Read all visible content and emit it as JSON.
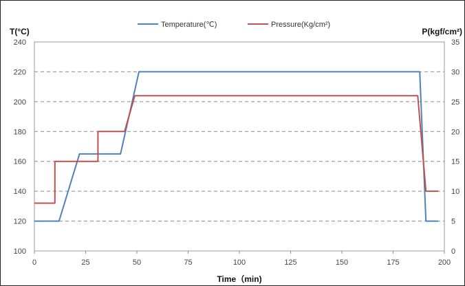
{
  "chart_data": {
    "type": "line",
    "title": "",
    "xlabel": "Time（min)",
    "ylabel_left": "T(°C)",
    "ylabel_right": "P(kgf/cm²)",
    "xlim": [
      0,
      200
    ],
    "ylim_left": [
      100,
      240
    ],
    "ylim_right": [
      0,
      35
    ],
    "x_ticks": [
      "0",
      "25",
      "50",
      "75",
      "100",
      "125",
      "150",
      "175",
      "200"
    ],
    "y_ticks_left": [
      "100",
      "120",
      "140",
      "160",
      "180",
      "200",
      "220",
      "240"
    ],
    "y_ticks_right": [
      "0",
      "5",
      "10",
      "15",
      "20",
      "25",
      "30",
      "35"
    ],
    "grid": true,
    "legend_position": "top",
    "series": [
      {
        "name": "Temperature(℃)",
        "axis": "left",
        "color": "#4f81bd",
        "x": [
          0,
          12,
          22,
          42,
          51,
          188,
          191,
          197
        ],
        "y": [
          120,
          120,
          165,
          165,
          220,
          220,
          120,
          120
        ]
      },
      {
        "name": "Pressure(Kg/cm²)",
        "axis": "right",
        "color": "#c0504d",
        "x": [
          0,
          10,
          10,
          31,
          31,
          44,
          49,
          187,
          191,
          197
        ],
        "y": [
          8,
          8,
          15,
          15,
          20,
          20,
          26,
          26,
          10,
          10
        ]
      }
    ]
  }
}
